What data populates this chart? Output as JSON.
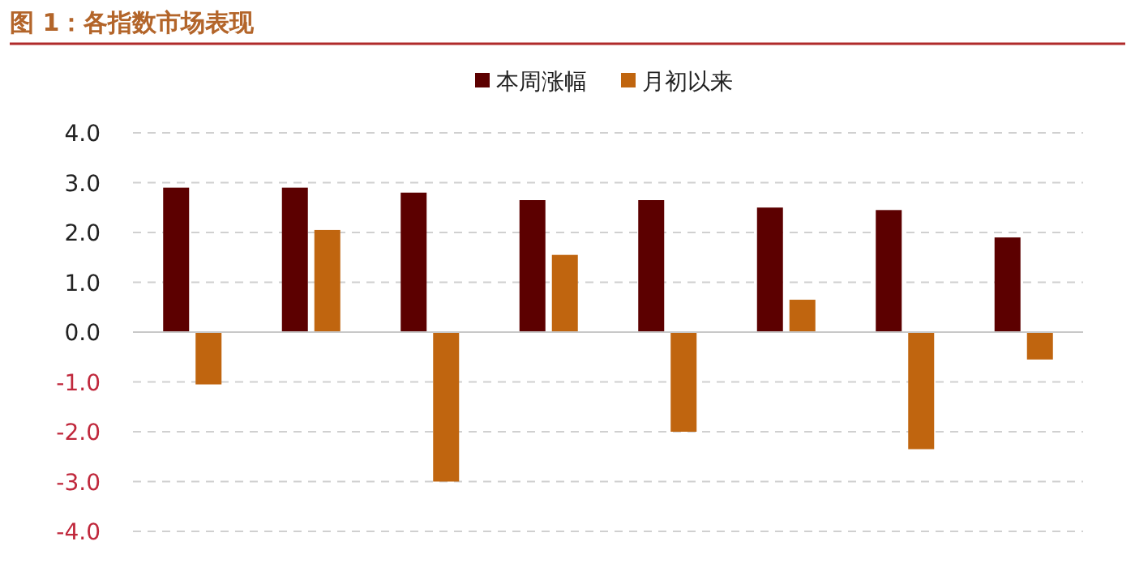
{
  "chart_data": {
    "type": "bar",
    "title": "图 1：各指数市场表现",
    "categories": [
      null,
      null,
      null,
      null,
      null,
      null,
      null,
      null
    ],
    "series": [
      {
        "name": "本周涨幅",
        "color": "#5c0000",
        "values": [
          2.9,
          2.9,
          2.8,
          2.65,
          2.65,
          2.5,
          2.45,
          1.9
        ]
      },
      {
        "name": "月初以来",
        "color": "#c0650f",
        "values": [
          -1.05,
          2.05,
          -3.0,
          1.55,
          -2.0,
          0.65,
          -2.35,
          -0.55
        ]
      }
    ],
    "ylim": [
      -4,
      4
    ],
    "yticks": [
      {
        "value": -4,
        "label": "-4.0"
      },
      {
        "value": -3,
        "label": "-3.0"
      },
      {
        "value": -2,
        "label": "-2.0"
      },
      {
        "value": -1,
        "label": "-1.0"
      },
      {
        "value": 0,
        "label": "0.0"
      },
      {
        "value": 1,
        "label": "1.0"
      },
      {
        "value": 2,
        "label": "2.0"
      },
      {
        "value": 3,
        "label": "3.0"
      },
      {
        "value": 4,
        "label": "4.0"
      }
    ],
    "grid": "y",
    "legend": "top"
  }
}
